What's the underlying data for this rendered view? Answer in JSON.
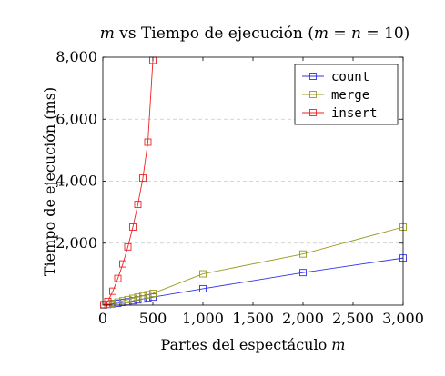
{
  "chart_data": {
    "type": "line",
    "title": "m vs Tiempo de ejecución (m = n = 10)",
    "title_parts": {
      "m": "m",
      "text": " vs Tiempo de ejecución (",
      "eq_m": "m",
      "eq1": " = ",
      "eq_n": "n",
      "eq2": " = 10)"
    },
    "xlabel": "Partes del espectáculo m",
    "xlabel_parts": {
      "text": "Partes del espectáculo ",
      "var": "m"
    },
    "ylabel": "Tiempo de ejecución (ms)",
    "xlim": [
      0,
      3000
    ],
    "ylim": [
      0,
      8000
    ],
    "xticks": [
      0,
      500,
      1000,
      1500,
      2000,
      2500,
      3000
    ],
    "xtick_labels": [
      "0",
      "500",
      "1,000",
      "1,500",
      "2,000",
      "2,500",
      "3,000"
    ],
    "yticks": [
      2000,
      4000,
      6000,
      8000
    ],
    "ytick_labels": [
      "2,000",
      "4,000",
      "6,000",
      "8,000"
    ],
    "grid": "horizontal-dashed",
    "legend_position": "top-right",
    "series": [
      {
        "name": "count",
        "color": "#3333ee",
        "marker": "square",
        "x": [
          10,
          50,
          100,
          150,
          200,
          250,
          300,
          350,
          400,
          450,
          500,
          1000,
          2000,
          3000
        ],
        "y": [
          5,
          20,
          40,
          60,
          90,
          110,
          140,
          170,
          200,
          230,
          260,
          530,
          1050,
          1520
        ]
      },
      {
        "name": "merge",
        "color": "#999922",
        "marker": "square",
        "x": [
          10,
          50,
          100,
          150,
          200,
          250,
          300,
          350,
          400,
          450,
          500,
          1000,
          2000,
          3000
        ],
        "y": [
          10,
          30,
          60,
          100,
          140,
          180,
          220,
          260,
          300,
          340,
          380,
          1010,
          1650,
          2520
        ]
      },
      {
        "name": "insert",
        "color": "#ee2222",
        "marker": "square",
        "x": [
          10,
          50,
          100,
          150,
          200,
          250,
          300,
          350,
          400,
          450,
          500
        ],
        "y": [
          20,
          120,
          450,
          860,
          1330,
          1880,
          2520,
          3250,
          4100,
          5260,
          7900
        ]
      }
    ]
  }
}
